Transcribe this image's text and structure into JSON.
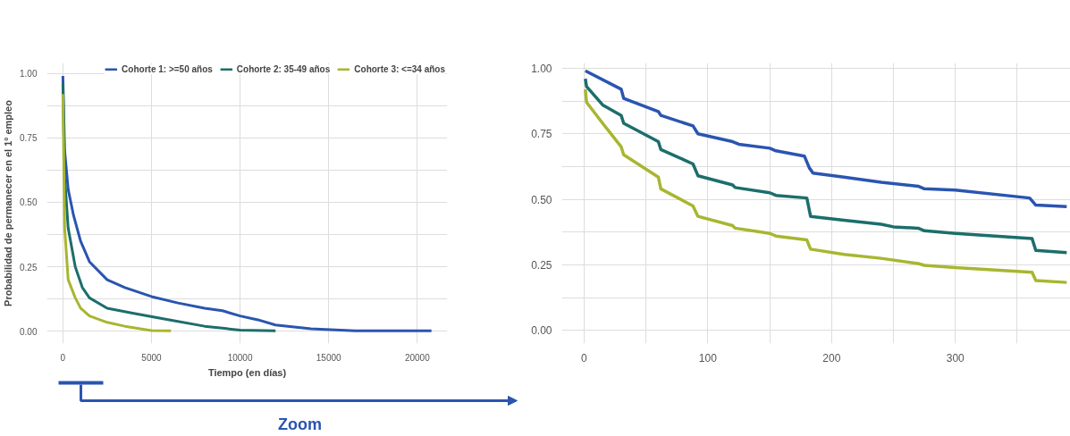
{
  "chart_data": [
    {
      "type": "line",
      "xlabel": "Tiempo (en días)",
      "ylabel": "Probabilidad de permanecer en el 1º empleo",
      "xlim": [
        -900,
        21700
      ],
      "ylim": [
        -0.047,
        1.04
      ],
      "xticks": [
        0,
        5000,
        10000,
        15000,
        20000
      ],
      "yticks": [
        {
          "value": 0,
          "label": "0.00"
        },
        {
          "value": 0.125,
          "label": null
        },
        {
          "value": 0.25,
          "label": "0.25"
        },
        {
          "value": 0.375,
          "label": null
        },
        {
          "value": 0.5,
          "label": "0.50"
        },
        {
          "value": 0.625,
          "label": null
        },
        {
          "value": 0.75,
          "label": "0.75"
        },
        {
          "value": 0.875,
          "label": null
        },
        {
          "value": 1,
          "label": "1.00"
        }
      ],
      "grid": true,
      "legend": "top",
      "line_style": "solid",
      "marker": "none",
      "annotations": [
        "Zoom"
      ],
      "series": [
        {
          "name": "Cohorte 1: >=50 años",
          "color": "#2a55b0",
          "x": [
            0,
            100,
            300,
            600,
            1000,
            1500,
            2500,
            3500,
            5000,
            6500,
            8000,
            9000,
            10000,
            11000,
            12000,
            14000,
            16500,
            20800
          ],
          "values": [
            0.99,
            0.7,
            0.55,
            0.45,
            0.35,
            0.27,
            0.2,
            0.17,
            0.135,
            0.11,
            0.09,
            0.08,
            0.06,
            0.045,
            0.025,
            0.01,
            0.002,
            0.002
          ]
        },
        {
          "name": "Cohorte 2: 35-49 años",
          "color": "#1c6e6b",
          "x": [
            0,
            100,
            300,
            700,
            1100,
            1500,
            2500,
            4000,
            6000,
            8000,
            10000,
            12000
          ],
          "values": [
            0.96,
            0.6,
            0.4,
            0.25,
            0.17,
            0.13,
            0.09,
            0.07,
            0.045,
            0.02,
            0.005,
            0.002
          ]
        },
        {
          "name": "Cohorte 3: <=34 años",
          "color": "#a8b630",
          "x": [
            0,
            100,
            300,
            700,
            1000,
            1500,
            2500,
            3500,
            5000,
            6100
          ],
          "values": [
            0.92,
            0.4,
            0.2,
            0.13,
            0.09,
            0.06,
            0.035,
            0.02,
            0.003,
            0.002
          ]
        }
      ]
    },
    {
      "type": "line",
      "xlim": [
        -18,
        393
      ],
      "ylim": [
        -0.05,
        1.02
      ],
      "xticks": [
        0,
        {
          "value": 50,
          "label": null
        },
        100,
        {
          "value": 150,
          "label": null
        },
        200,
        {
          "value": 250,
          "label": null
        },
        300,
        {
          "value": 350,
          "label": null
        }
      ],
      "yticks": [
        {
          "value": 0,
          "label": "0.00"
        },
        {
          "value": 0.125,
          "label": null
        },
        {
          "value": 0.25,
          "label": "0.25"
        },
        {
          "value": 0.375,
          "label": null
        },
        {
          "value": 0.5,
          "label": "0.50"
        },
        {
          "value": 0.625,
          "label": null
        },
        {
          "value": 0.75,
          "label": "0.75"
        },
        {
          "value": 0.875,
          "label": null
        },
        {
          "value": 1,
          "label": "1.00"
        }
      ],
      "grid": true,
      "line_style": "solid",
      "marker": "none",
      "series": [
        {
          "color": "#2a55b0",
          "x": [
            1,
            30,
            32,
            60,
            62,
            88,
            92,
            120,
            125,
            150,
            155,
            178,
            182,
            185,
            210,
            240,
            270,
            275,
            300,
            360,
            365,
            390
          ],
          "values": [
            0.99,
            0.92,
            0.885,
            0.835,
            0.82,
            0.78,
            0.75,
            0.72,
            0.71,
            0.695,
            0.685,
            0.665,
            0.62,
            0.6,
            0.585,
            0.565,
            0.55,
            0.54,
            0.535,
            0.505,
            0.478,
            0.472
          ]
        },
        {
          "color": "#1c6e6b",
          "x": [
            1,
            2,
            15,
            30,
            32,
            60,
            62,
            88,
            92,
            120,
            122,
            150,
            155,
            180,
            183,
            210,
            240,
            250,
            270,
            275,
            300,
            362,
            365,
            390
          ],
          "values": [
            0.96,
            0.93,
            0.86,
            0.82,
            0.79,
            0.72,
            0.69,
            0.635,
            0.59,
            0.555,
            0.545,
            0.525,
            0.515,
            0.505,
            0.435,
            0.42,
            0.405,
            0.395,
            0.39,
            0.38,
            0.37,
            0.35,
            0.305,
            0.297
          ]
        },
        {
          "color": "#a8b630",
          "x": [
            1,
            2,
            15,
            30,
            32,
            60,
            62,
            88,
            92,
            120,
            122,
            150,
            155,
            180,
            183,
            210,
            240,
            270,
            275,
            300,
            362,
            365,
            390
          ],
          "values": [
            0.92,
            0.87,
            0.79,
            0.7,
            0.67,
            0.585,
            0.54,
            0.475,
            0.435,
            0.4,
            0.39,
            0.37,
            0.36,
            0.345,
            0.31,
            0.29,
            0.275,
            0.255,
            0.248,
            0.24,
            0.222,
            0.19,
            0.183
          ]
        }
      ]
    }
  ]
}
